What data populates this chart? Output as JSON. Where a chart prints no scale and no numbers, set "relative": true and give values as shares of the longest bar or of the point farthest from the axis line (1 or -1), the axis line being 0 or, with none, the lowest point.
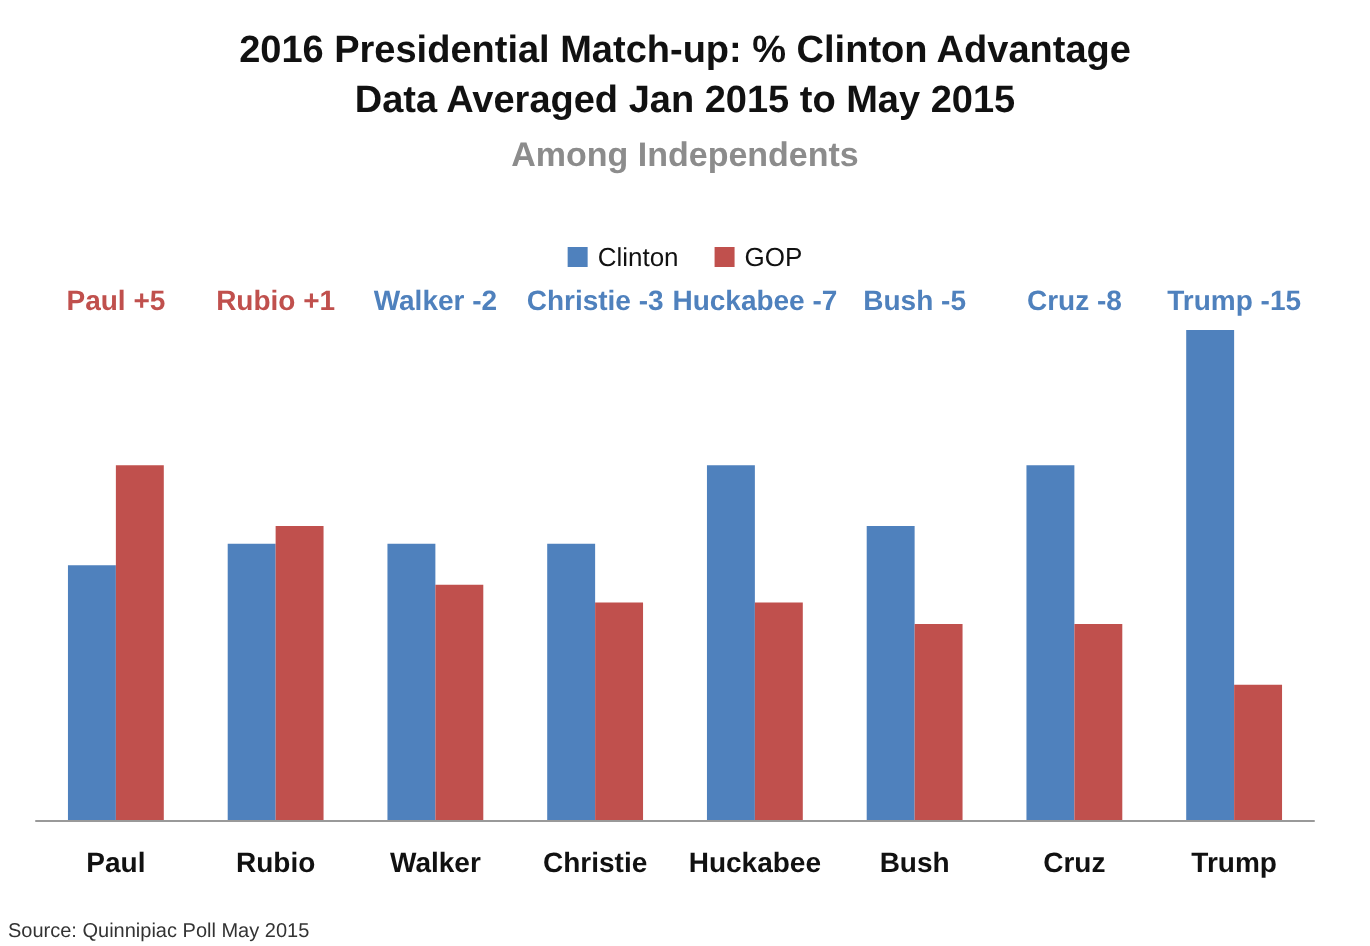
{
  "chart_data": {
    "type": "bar",
    "title": "2016 Presidential Match-up: % Clinton Advantage\nData Averaged Jan 2015 to May 2015",
    "subtitle": "Among Independents",
    "categories": [
      "Paul",
      "Rubio",
      "Walker",
      "Christie",
      "Huckabee",
      "Bush",
      "Cruz",
      "Trump"
    ],
    "relative": true,
    "series": [
      {
        "name": "Clinton",
        "color": "#4f81bd",
        "values": [
          0.52,
          0.564,
          0.564,
          0.564,
          0.724,
          0.6,
          0.724,
          1
        ]
      },
      {
        "name": "GOP",
        "color": "#c0504d",
        "values": [
          0.724,
          0.6,
          0.48,
          0.444,
          0.444,
          0.4,
          0.4,
          0.276
        ]
      }
    ],
    "annotations": [
      "Paul +5",
      "Rubio +1",
      "Walker -2",
      "Christie -3",
      "Huckabee -7",
      "Bush -5",
      "Cruz -8",
      "Trump -15",
      "Source: Quinnipiac Poll May 2015"
    ],
    "legend": "top"
  }
}
